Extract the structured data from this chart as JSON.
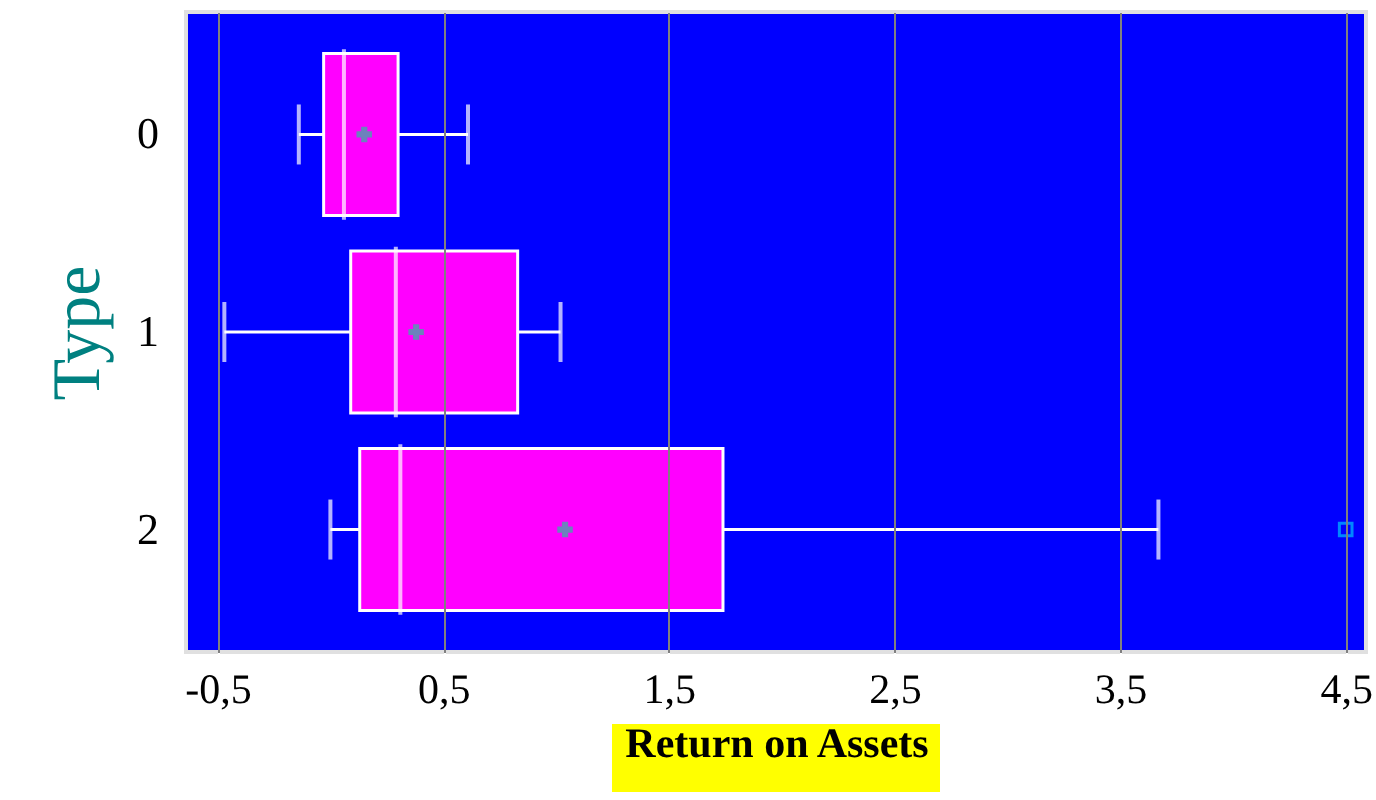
{
  "chart_data": {
    "type": "box",
    "orientation": "horizontal",
    "xlabel": "Return on Assets",
    "ylabel": "Type",
    "categories": [
      "0",
      "1",
      "2"
    ],
    "series": [
      {
        "color": "#ff00ff",
        "boxes": [
          {
            "low": -0.14,
            "q1": -0.03,
            "median": 0.06,
            "q3": 0.3,
            "high": 0.61,
            "mean": 0.15
          },
          {
            "low": -0.47,
            "q1": 0.09,
            "median": 0.29,
            "q3": 0.83,
            "high": 1.02,
            "mean": 0.38
          },
          {
            "low": 0.0,
            "q1": 0.13,
            "median": 0.31,
            "q3": 1.74,
            "high": 3.67,
            "mean": 1.04,
            "outliers": [
              4.5
            ]
          }
        ]
      }
    ],
    "xlim": [
      -0.64,
      4.59
    ],
    "xticks": [
      {
        "value": -0.5,
        "label": "-0,5"
      },
      {
        "value": 0.5,
        "label": "0,5"
      },
      {
        "value": 1.5,
        "label": "1,5"
      },
      {
        "value": 2.5,
        "label": "2,5"
      },
      {
        "value": 3.5,
        "label": "3,5"
      },
      {
        "value": 4.5,
        "label": "4,5"
      }
    ],
    "grid": "x",
    "marker": "cross"
  }
}
